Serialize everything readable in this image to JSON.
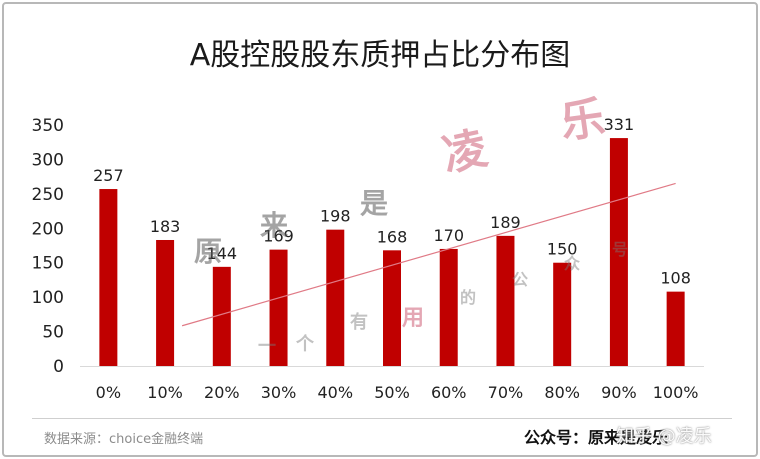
{
  "title": "A股控股股东质押占比分布图",
  "chart_data": {
    "type": "bar",
    "categories": [
      "0%",
      "10%",
      "20%",
      "30%",
      "40%",
      "50%",
      "60%",
      "70%",
      "80%",
      "90%",
      "100%"
    ],
    "values": [
      257,
      183,
      144,
      169,
      198,
      168,
      170,
      189,
      150,
      331,
      108
    ],
    "y_ticks": [
      0,
      50,
      100,
      150,
      200,
      250,
      300,
      350
    ],
    "ylim": [
      0,
      350
    ],
    "data_labels": true,
    "trendline": true,
    "grid": false,
    "legend": "none",
    "bar_color": "#c00000",
    "trendline_color": "#e07a86"
  },
  "footer": {
    "source": "数据来源：choice金融终端",
    "account": "公众号：原来是凌乐",
    "platform": "知乎 @凌乐"
  },
  "watermark": {
    "chars_red": [
      "凌",
      "乐"
    ],
    "chars_gray": [
      "原",
      "来",
      "是"
    ],
    "chars_light": [
      "一",
      "个",
      "有",
      "用",
      "的",
      "公",
      "众",
      "号"
    ]
  }
}
